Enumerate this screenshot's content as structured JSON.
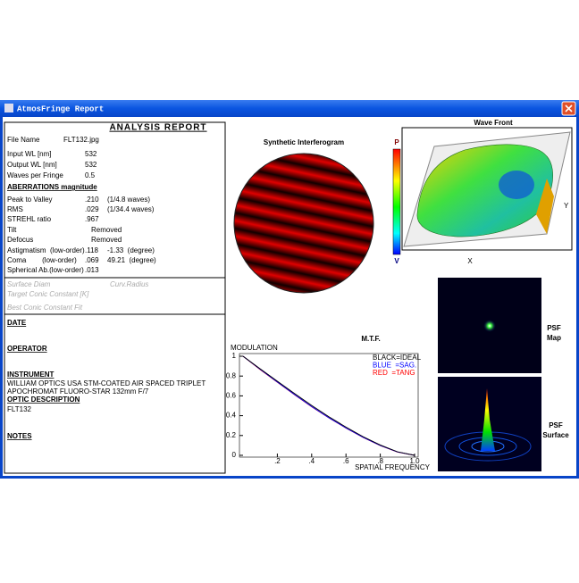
{
  "window": {
    "title": "AtmosFringe  Report"
  },
  "report": {
    "title": "ANALYSIS REPORT",
    "input_rows": [
      [
        "File Name",
        "FLT132.jpg"
      ],
      [
        "Input WL [nm]",
        "532"
      ],
      [
        "Output WL [nm]",
        "532"
      ],
      [
        "Waves per Fringe",
        "0.5"
      ]
    ],
    "aberrations_heading": "ABERRATIONS magnitude",
    "aberration_rows": [
      [
        "Peak to Valley",
        ".210",
        "(1/4.8 waves)"
      ],
      [
        "RMS",
        ".029",
        "(1/34.4 waves)"
      ],
      [
        "STREHL ratio",
        ".967"
      ],
      [
        "Tilt",
        "Removed"
      ],
      [
        "Defocus",
        "Removed"
      ],
      [
        "Astigmatism  (low-order)",
        ".118",
        "-1.33  (degree)"
      ],
      [
        "Coma        (low-order)",
        ".069",
        "49.21  (degree)"
      ],
      [
        "Spherical Ab.(low-order)",
        ".013"
      ]
    ],
    "conic_rows": [
      [
        "Surface Diam",
        "Curv.Radius"
      ],
      [
        "Target Conic Constant [K]"
      ],
      [
        "Best Conic Constant Fit"
      ]
    ]
  },
  "notes": {
    "date": "DATE",
    "operator": "OPERATOR",
    "instrument": "INSTRUMENT",
    "instrument_text": [
      "WILLIAM OPTICS USA STM-COATED AIR SPACED TRIPLET",
      "APOCHROMAT FLUORO-STAR 132mm F/7"
    ],
    "optic_description": "OPTIC DESCRIPTION",
    "optic_text": "FLT132",
    "notes": "NOTES"
  },
  "interferogram": {
    "title": "Synthetic Interferogram",
    "scale_top": "P",
    "scale_bottom": "V"
  },
  "wavefront": {
    "title": "Wave Front",
    "axis_y": "Y",
    "axis_x": "X"
  },
  "psf": {
    "map_label": [
      "PSF",
      "Map"
    ],
    "surface_label": [
      "PSF",
      "Surface"
    ]
  },
  "chart_data": {
    "type": "line",
    "title": "M.T.F.",
    "y_label": "MODULATION",
    "x_label": "SPATIAL FREQUENCY",
    "x": [
      0,
      0.1,
      0.2,
      0.3,
      0.4,
      0.5,
      0.6,
      0.7,
      0.8,
      0.9,
      1
    ],
    "series": [
      {
        "name": "RED  =TANG",
        "color": "#ff0000",
        "values": [
          1,
          0.865,
          0.737,
          0.611,
          0.49,
          0.378,
          0.275,
          0.18,
          0.098,
          0.033,
          0
        ]
      },
      {
        "name": "BLUE  =SAG.",
        "color": "#0000ff",
        "values": [
          1,
          0.868,
          0.74,
          0.614,
          0.492,
          0.38,
          0.276,
          0.181,
          0.099,
          0.034,
          0
        ]
      },
      {
        "name": "BLACK=IDEAL",
        "color": "#000000",
        "values": [
          1,
          0.873,
          0.748,
          0.624,
          0.503,
          0.39,
          0.285,
          0.188,
          0.104,
          0.036,
          0
        ]
      }
    ],
    "xlim": [
      0,
      1
    ],
    "ylim": [
      0,
      1
    ],
    "xticks": [
      {
        "value": 0.2,
        "label": ".2"
      },
      {
        "value": 0.4,
        "label": ".4"
      },
      {
        "value": 0.6,
        "label": ".6"
      },
      {
        "value": 0.8,
        "label": ".8"
      },
      {
        "value": 1,
        "label": "1.0"
      }
    ],
    "yticks": [
      0,
      0.2,
      0.4,
      0.6,
      0.8,
      1
    ]
  }
}
